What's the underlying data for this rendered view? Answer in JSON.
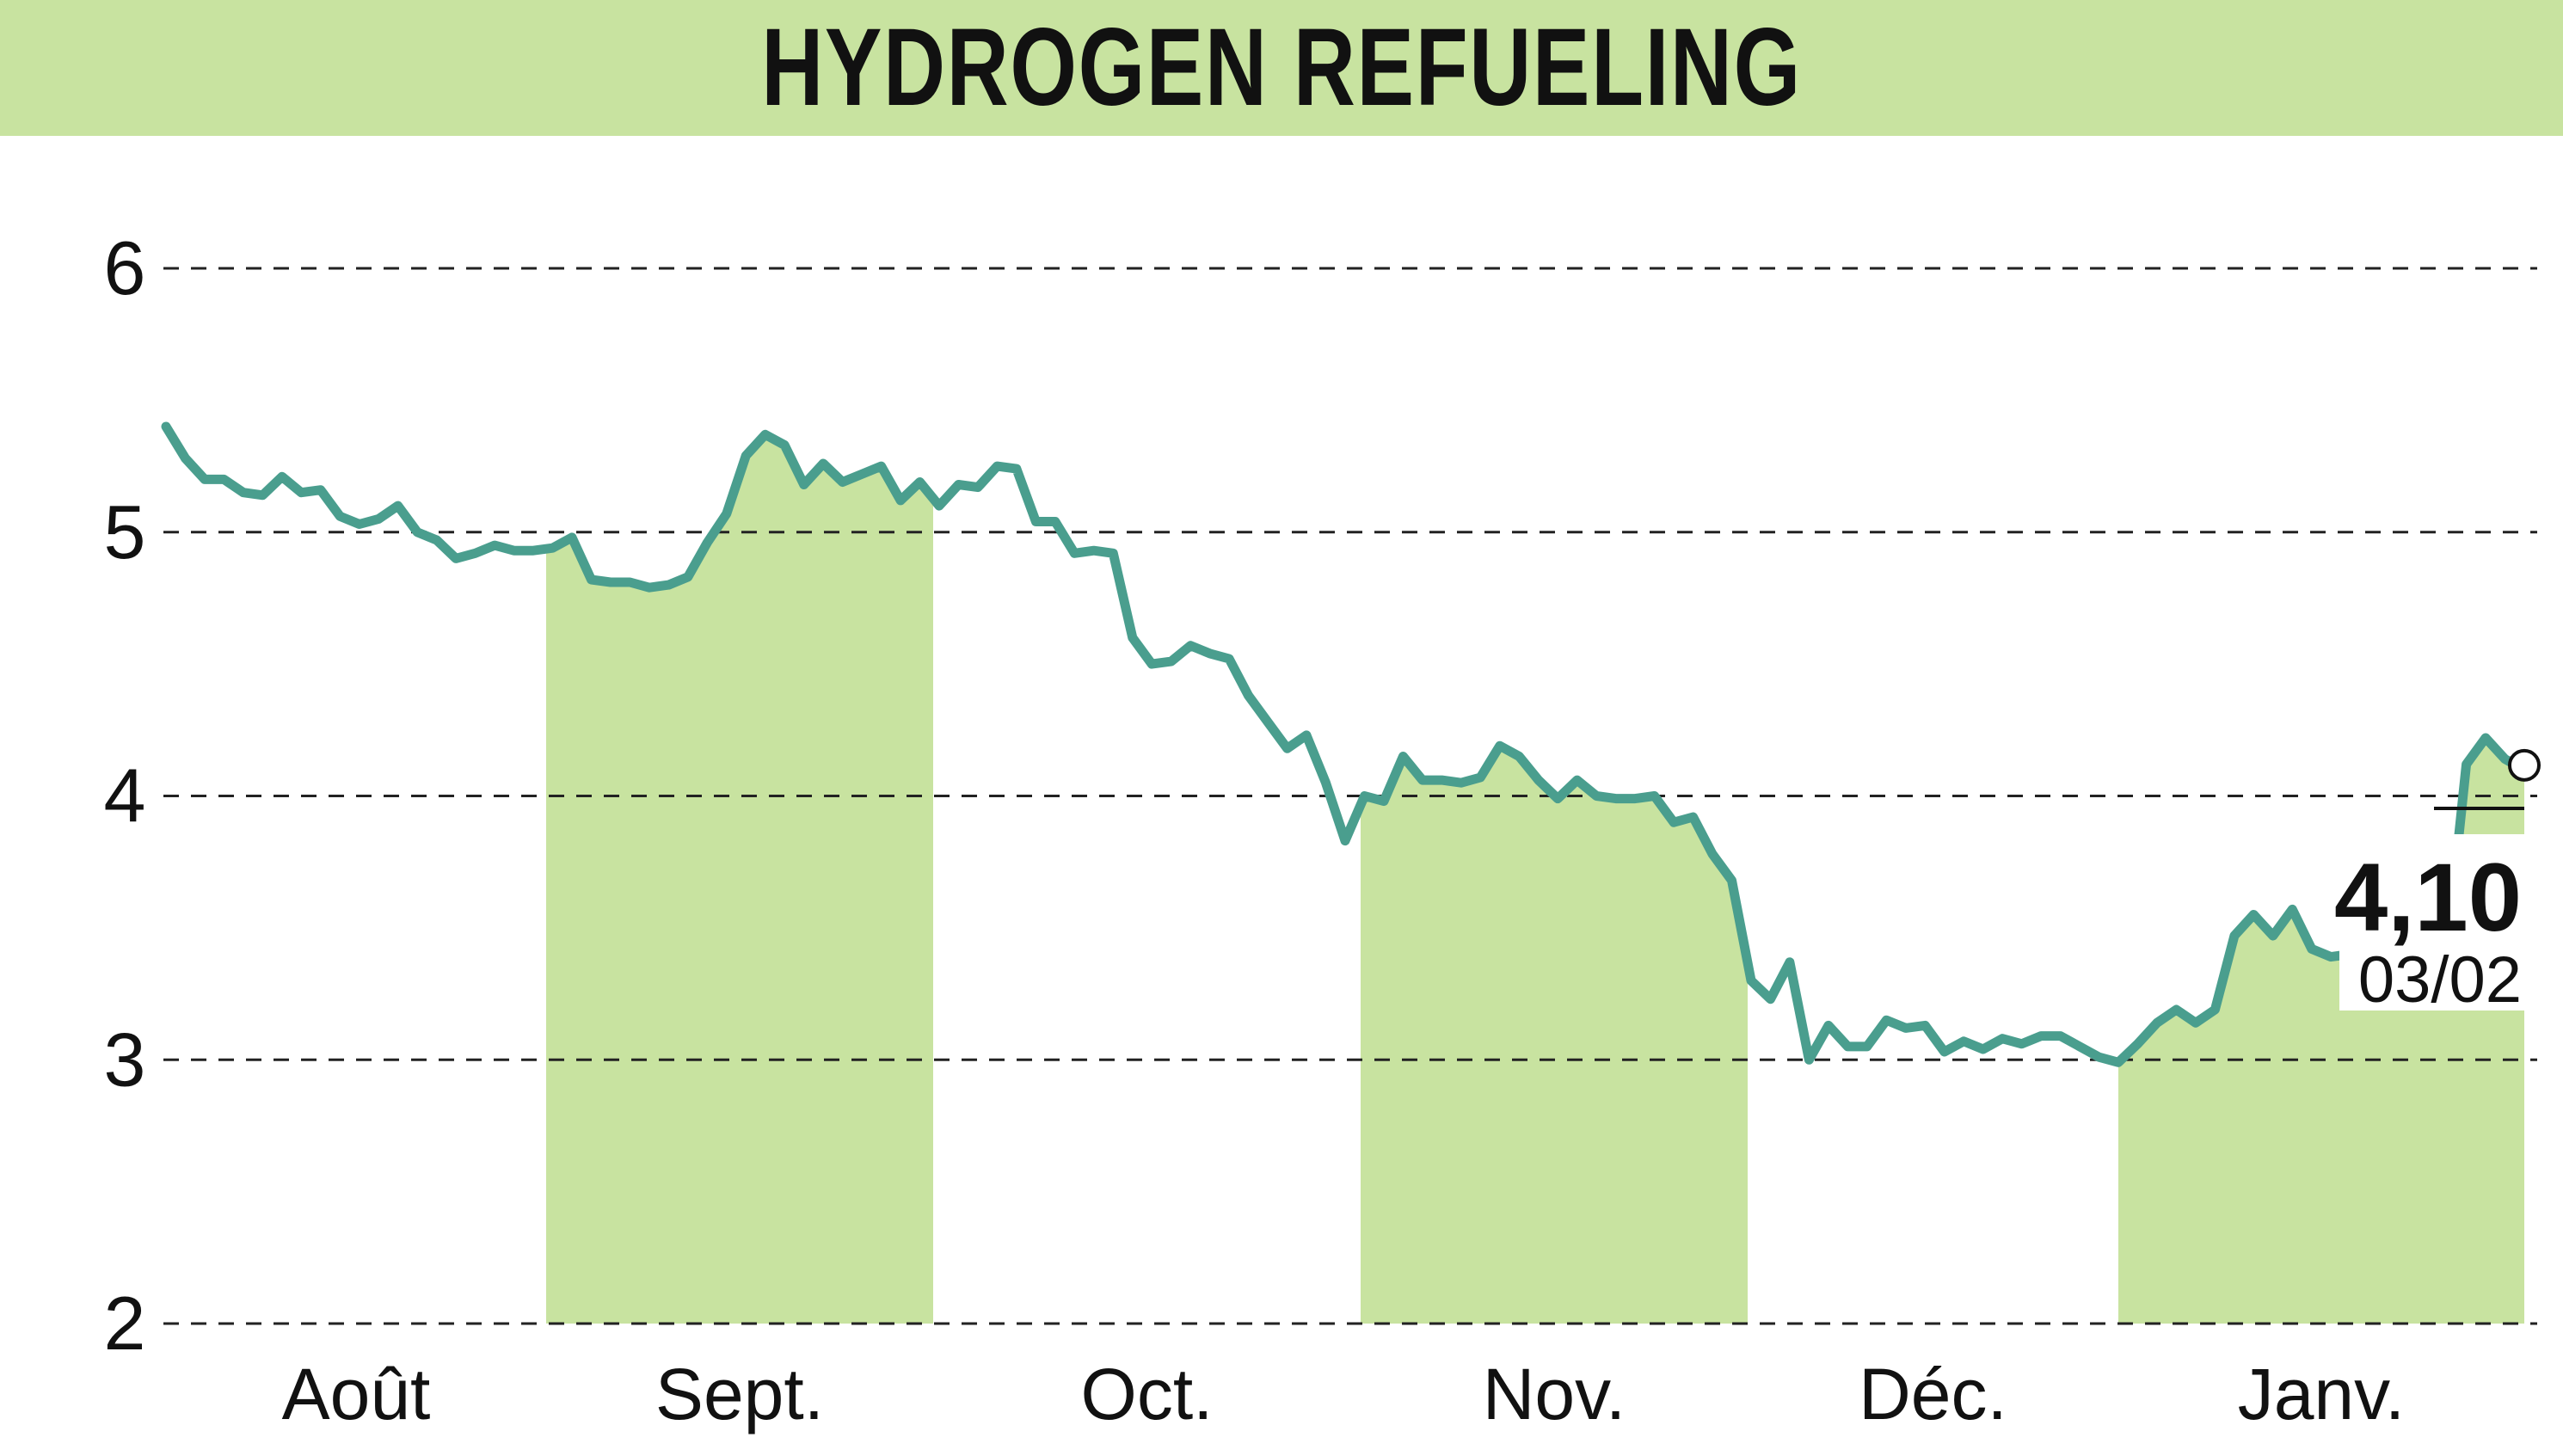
{
  "title": "HYDROGEN REFUELING",
  "chart_data": {
    "type": "line",
    "title": "HYDROGEN REFUELING",
    "xlabel": "",
    "ylabel": "",
    "ylim": [
      2,
      6
    ],
    "yticks": [
      "2",
      "3",
      "4",
      "5",
      "6"
    ],
    "xticks": [
      "Août",
      "Sept.",
      "Oct.",
      "Nov.",
      "Déc.",
      "Janv."
    ],
    "grid": "horizontal dashed",
    "last_value": "4,10",
    "last_date": "03/02",
    "series": [
      {
        "values": [
          5.4,
          5.28,
          5.2,
          5.2,
          5.15,
          5.14,
          5.21,
          5.15,
          5.16,
          5.06,
          5.03,
          5.05,
          5.1,
          5.0,
          4.97,
          4.9,
          4.92,
          4.95,
          4.93,
          4.93,
          4.94,
          4.98,
          4.82,
          4.81,
          4.81,
          4.79,
          4.8,
          4.83,
          4.96,
          5.07,
          5.29,
          5.37,
          5.33,
          5.18,
          5.26,
          5.19,
          5.22,
          5.25,
          5.12,
          5.19,
          5.1,
          5.18,
          5.17,
          5.25,
          5.24,
          5.04,
          5.04,
          4.92,
          4.93,
          4.92,
          4.6,
          4.5,
          4.51,
          4.57,
          4.54,
          4.52,
          4.38,
          4.28,
          4.18,
          4.23,
          4.05,
          3.83,
          4.0,
          3.98,
          4.15,
          4.06,
          4.06,
          4.05,
          4.07,
          4.19,
          4.15,
          4.06,
          3.99,
          4.06,
          4.0,
          3.99,
          3.99,
          4.0,
          3.9,
          3.92,
          3.78,
          3.68,
          3.3,
          3.23,
          3.37,
          3.0,
          3.13,
          3.05,
          3.05,
          3.15,
          3.12,
          3.13,
          3.03,
          3.07,
          3.04,
          3.08,
          3.06,
          3.09,
          3.09,
          3.05,
          3.01,
          2.99,
          3.06,
          3.14,
          3.19,
          3.14,
          3.19,
          3.47,
          3.55,
          3.47,
          3.57,
          3.42,
          3.39,
          3.4,
          3.4,
          3.4,
          3.42,
          3.44,
          3.42,
          4.12,
          4.22,
          4.14,
          4.1
        ]
      }
    ],
    "shaded_months": [
      "Sept.",
      "Nov.",
      "Janv."
    ]
  }
}
